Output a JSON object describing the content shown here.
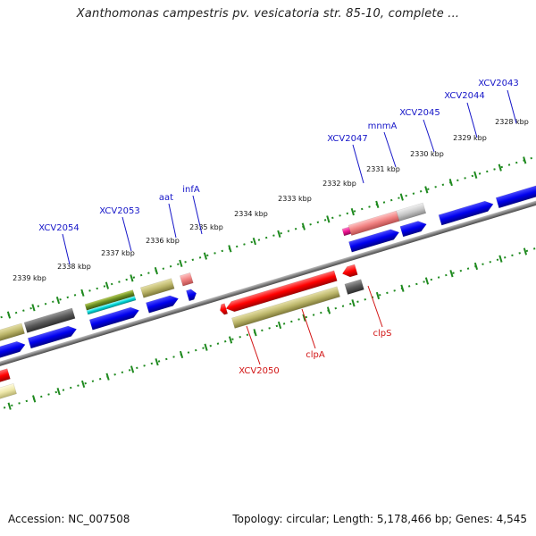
{
  "title": "Xanthomonas campestris pv. vesicatoria str. 85-10, complete ...",
  "footer": {
    "accession": "Accession: NC_007508",
    "topology": "Topology: circular; Length: 5,178,466 bp; Genes: 4,545"
  },
  "colors": {
    "forward_label": "#1515c8",
    "reverse_label": "#d21414",
    "backbone": "#808080",
    "ticks": "#1f8a1f"
  },
  "ticks": [
    {
      "label": "2339 kbp"
    },
    {
      "label": "2338 kbp"
    },
    {
      "label": "2337 kbp"
    },
    {
      "label": "2336 kbp"
    },
    {
      "label": "2335 kbp"
    },
    {
      "label": "2334 kbp"
    },
    {
      "label": "2333 kbp"
    },
    {
      "label": "2332 kbp"
    },
    {
      "label": "2331 kbp"
    },
    {
      "label": "2330 kbp"
    },
    {
      "label": "2329 kbp"
    },
    {
      "label": "2328 kbp"
    }
  ],
  "forward_gene_labels": [
    {
      "label": "XCV2054"
    },
    {
      "label": "XCV2053"
    },
    {
      "label": "aat"
    },
    {
      "label": "infA"
    },
    {
      "label": "XCV2047"
    },
    {
      "label": "mnmA"
    },
    {
      "label": "XCV2045"
    },
    {
      "label": "XCV2044"
    },
    {
      "label": "XCV2043"
    }
  ],
  "reverse_gene_labels": [
    {
      "label": "XCV2050"
    },
    {
      "label": "clpA"
    },
    {
      "label": "clpS"
    }
  ]
}
